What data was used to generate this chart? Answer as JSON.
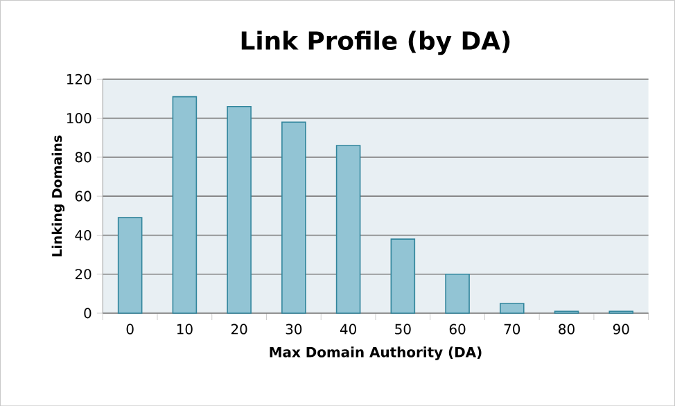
{
  "chart_data": {
    "type": "bar",
    "title": "Link Profile (by DA)",
    "xlabel": "Max Domain Authority (DA)",
    "ylabel": "Linking Domains",
    "categories": [
      "0",
      "10",
      "20",
      "30",
      "40",
      "50",
      "60",
      "70",
      "80",
      "90"
    ],
    "values": [
      49,
      111,
      106,
      98,
      86,
      38,
      20,
      5,
      1,
      1
    ],
    "color": "#92c4d4",
    "ylim": [
      0,
      120
    ],
    "yticks": [
      0,
      20,
      40,
      60,
      80,
      100,
      120
    ],
    "grid": "y"
  }
}
